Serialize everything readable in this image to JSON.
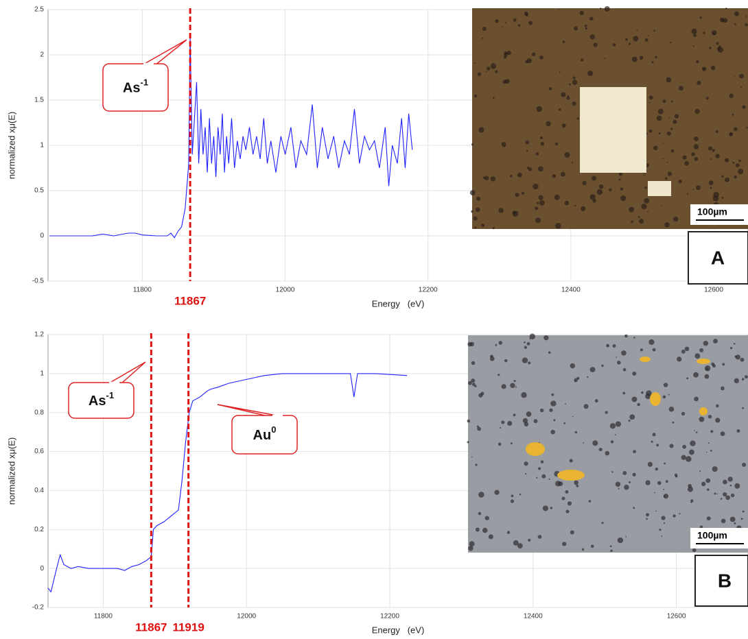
{
  "chart_data": [
    {
      "type": "line",
      "xlabel": "Energy   (eV)",
      "ylabel": "normalized xμ(E)",
      "x": [
        11670,
        11700,
        11730,
        11745,
        11760,
        11780,
        11790,
        11800,
        11820,
        11835,
        11840,
        11845,
        11850,
        11855,
        11860,
        11865,
        11867,
        11870,
        11873,
        11876,
        11879,
        11882,
        11885,
        11888,
        11891,
        11894,
        11897,
        11900,
        11903,
        11906,
        11909,
        11912,
        11915,
        11918,
        11921,
        11925,
        11929,
        11933,
        11937,
        11941,
        11945,
        11950,
        11955,
        11960,
        11965,
        11970,
        11975,
        11980,
        11987,
        11994,
        12000,
        12008,
        12015,
        12022,
        12030,
        12038,
        12045,
        12052,
        12060,
        12068,
        12075,
        12083,
        12090,
        12097,
        12104,
        12111,
        12118,
        12125,
        12132,
        12140,
        12145,
        12150,
        12157,
        12163,
        12168,
        12173,
        12178
      ],
      "series": [
        {
          "color": "#2020ff",
          "values": [
            0,
            0,
            0,
            0.02,
            0,
            0.03,
            0.03,
            0.01,
            0,
            0,
            0.03,
            -0.02,
            0.05,
            0.1,
            0.3,
            0.8,
            2.2,
            0.9,
            1.3,
            1.7,
            0.8,
            1.4,
            0.9,
            1.2,
            0.7,
            1.3,
            0.8,
            1.1,
            0.65,
            1.2,
            0.9,
            1.35,
            0.7,
            1.1,
            0.8,
            1.3,
            0.75,
            1.05,
            0.85,
            1.1,
            0.95,
            1.2,
            0.9,
            1.1,
            0.85,
            1.3,
            0.8,
            1.05,
            0.7,
            1.1,
            0.9,
            1.2,
            0.75,
            1.05,
            0.9,
            1.45,
            0.75,
            1.2,
            0.85,
            1.1,
            0.75,
            1.05,
            0.9,
            1.4,
            0.8,
            1.1,
            0.95,
            1.05,
            0.75,
            1.2,
            0.55,
            1.0,
            0.8,
            1.3,
            0.75,
            1.35,
            0.95
          ]
        }
      ],
      "xlim": [
        11668,
        12648
      ],
      "ylim": [
        -0.5,
        2.5
      ],
      "xticks": [
        11800,
        12000,
        12200,
        12400,
        12600
      ],
      "yticks": [
        -0.5,
        0,
        0.5,
        1,
        1.5,
        2,
        2.5
      ],
      "grid": true,
      "markers": [
        11867
      ],
      "marker_color": "#e01010",
      "callouts": [
        {
          "text": "As",
          "sup": "-1"
        }
      ],
      "panel_label": "A",
      "scale_bar": "100µm"
    },
    {
      "type": "line",
      "xlabel": "Energy   (eV)",
      "ylabel": "normalized xμ(E)",
      "x": [
        11723,
        11727,
        11735,
        11740,
        11745,
        11755,
        11765,
        11780,
        11800,
        11820,
        11830,
        11840,
        11850,
        11860,
        11867,
        11870,
        11875,
        11885,
        11895,
        11905,
        11910,
        11915,
        11920,
        11925,
        11935,
        11945,
        11950,
        11960,
        11975,
        12000,
        12025,
        12050,
        12100,
        12145,
        12150,
        12155,
        12180,
        12224
      ],
      "series": [
        {
          "color": "#2020ff",
          "values": [
            -0.1,
            -0.12,
            0.0,
            0.07,
            0.02,
            0.0,
            0.01,
            0.0,
            0.0,
            0.0,
            -0.01,
            0.01,
            0.02,
            0.04,
            0.06,
            0.2,
            0.22,
            0.24,
            0.27,
            0.3,
            0.45,
            0.65,
            0.8,
            0.86,
            0.88,
            0.91,
            0.92,
            0.93,
            0.95,
            0.97,
            0.99,
            1.0,
            1.0,
            1.0,
            0.88,
            1.0,
            1.0,
            0.99
          ]
        }
      ],
      "xlim": [
        11723,
        12700
      ],
      "ylim": [
        -0.2,
        1.2
      ],
      "xticks": [
        11800,
        12000,
        12200,
        12400,
        12600
      ],
      "yticks": [
        -0.2,
        0,
        0.2,
        0.4,
        0.6,
        0.8,
        1,
        1.2
      ],
      "grid": true,
      "markers": [
        11867,
        11919
      ],
      "marker_color": "#e01010",
      "callouts": [
        {
          "text": "As",
          "sup": "-1"
        },
        {
          "text": "Au",
          "sup": "0"
        }
      ],
      "panel_label": "B",
      "scale_bar": "100µm"
    }
  ]
}
